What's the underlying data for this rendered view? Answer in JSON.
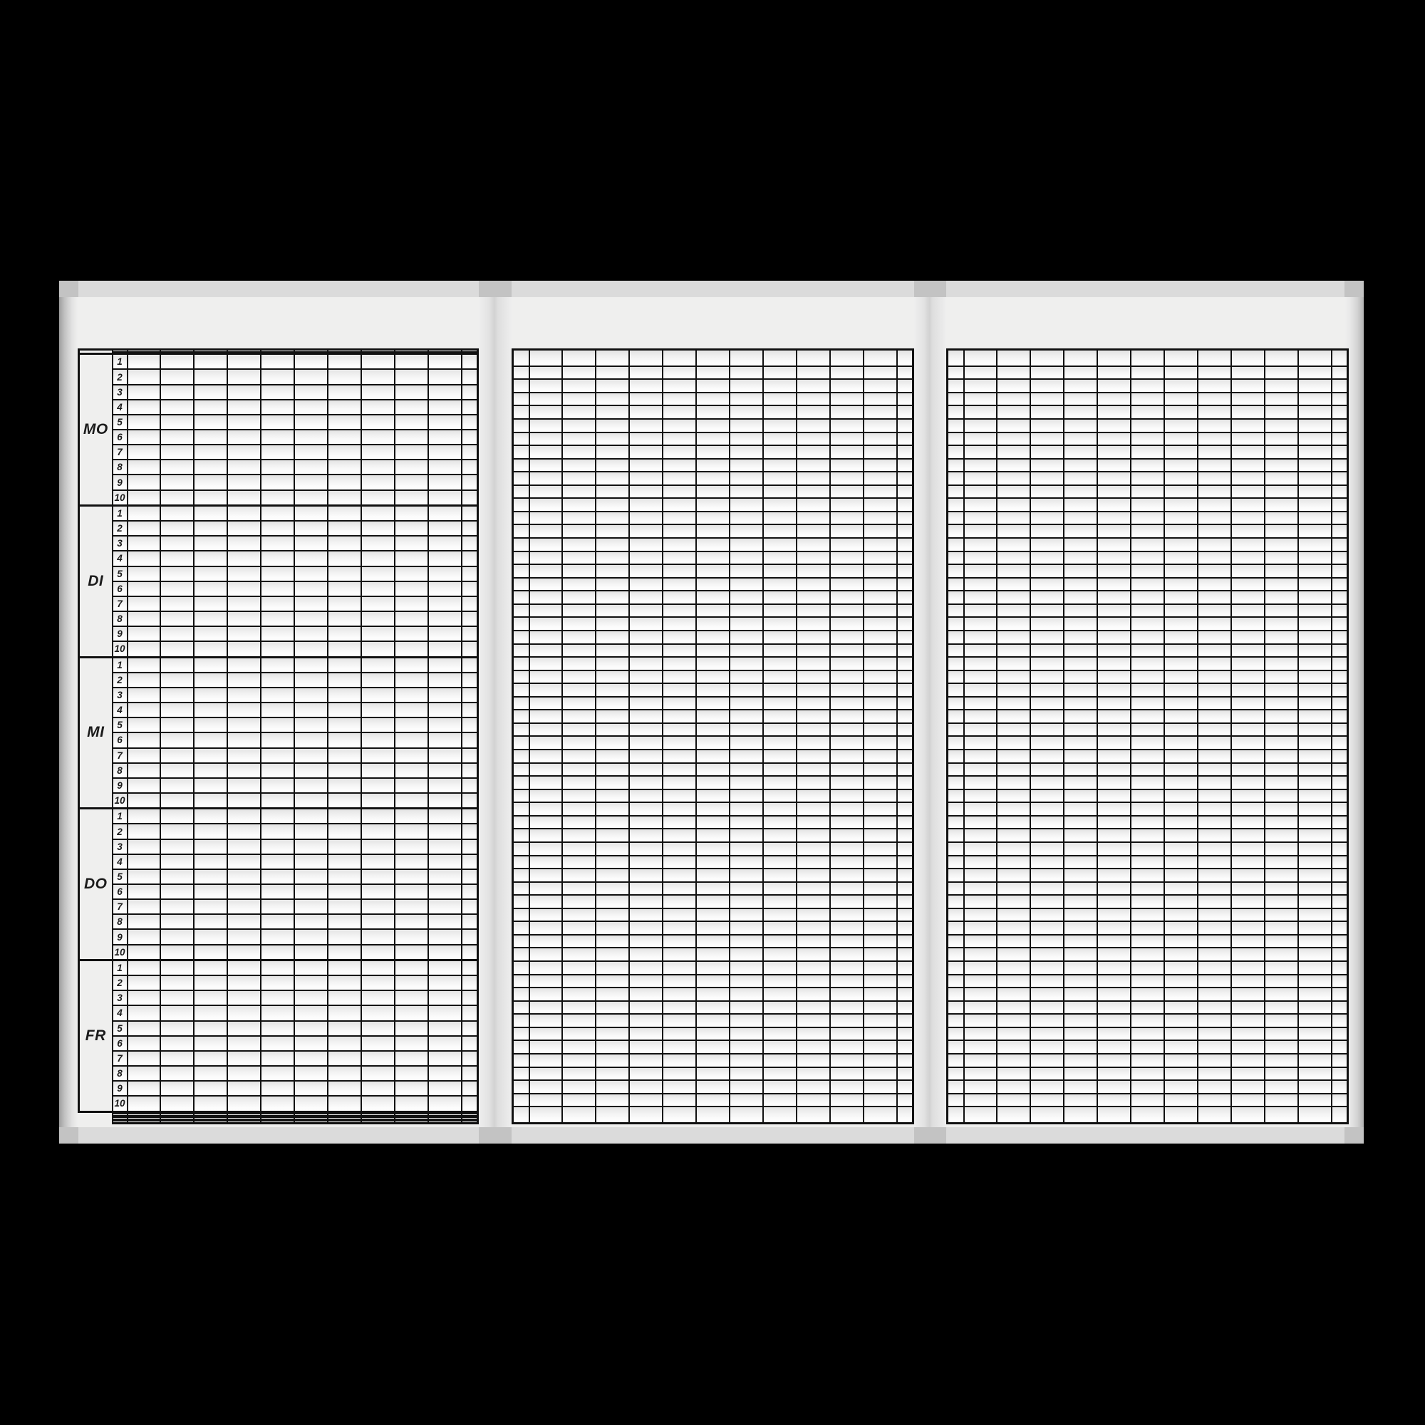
{
  "form": {
    "days": [
      {
        "label": "MO",
        "periods": [
          "1",
          "2",
          "3",
          "4",
          "5",
          "6",
          "7",
          "8",
          "9",
          "10"
        ]
      },
      {
        "label": "DI",
        "periods": [
          "1",
          "2",
          "3",
          "4",
          "5",
          "6",
          "7",
          "8",
          "9",
          "10"
        ]
      },
      {
        "label": "MI",
        "periods": [
          "1",
          "2",
          "3",
          "4",
          "5",
          "6",
          "7",
          "8",
          "9",
          "10"
        ]
      },
      {
        "label": "DO",
        "periods": [
          "1",
          "2",
          "3",
          "4",
          "5",
          "6",
          "7",
          "8",
          "9",
          "10"
        ]
      },
      {
        "label": "FR",
        "periods": [
          "1",
          "2",
          "3",
          "4",
          "5",
          "6",
          "7",
          "8",
          "9",
          "10"
        ]
      }
    ],
    "header_rows": 2,
    "extra_bottom_rows": 6,
    "left_page_subject_columns": 10,
    "continuation_page_columns": 11,
    "colors": {
      "background": "#000000",
      "paper": "#efefee",
      "grid_line": "#111111",
      "band": "#dbdbdb",
      "band_dark": "#c3c3c3",
      "cell_top": "#e4e4e4",
      "cell_bottom": "#fdfdfd",
      "label_text": "#1b1b1b"
    }
  }
}
